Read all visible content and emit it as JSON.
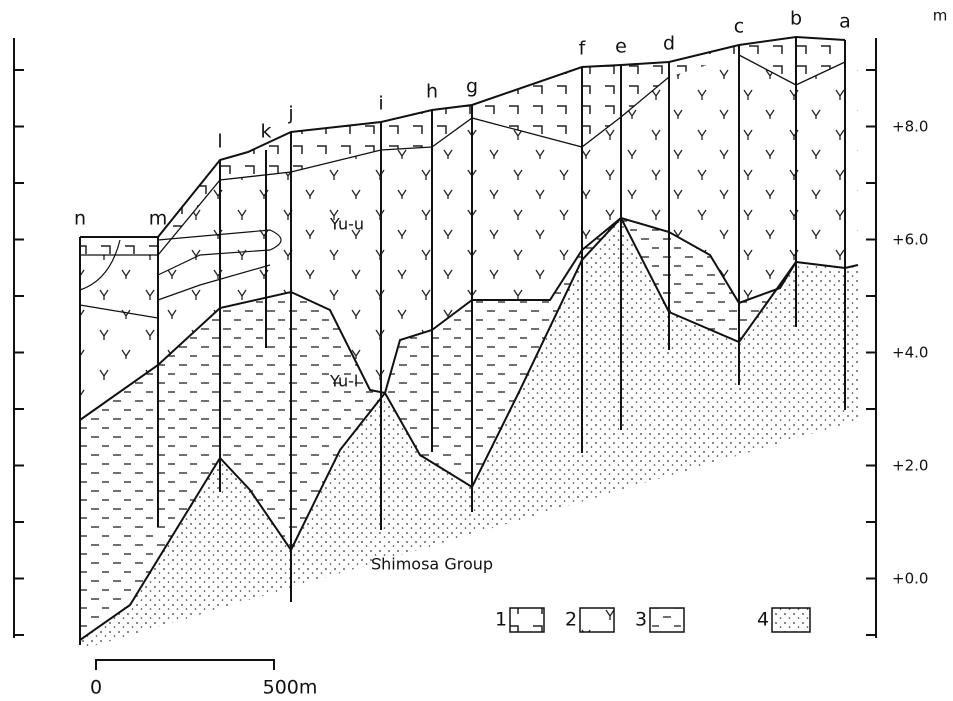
{
  "boreholes": [
    "n",
    "m",
    "l",
    "k",
    "j",
    "i",
    "h",
    "g",
    "f",
    "e",
    "d",
    "c",
    "b",
    "a"
  ],
  "axis": {
    "unit": "m",
    "labels": [
      "+8.0",
      "+6.0",
      "+4.0",
      "+2.0",
      "+0.0"
    ]
  },
  "units": {
    "upper": "Yu-u",
    "lower": "Yu-l",
    "base": "Shimosa Group"
  },
  "legend": [
    "1",
    "2",
    "3",
    "4"
  ],
  "scale": {
    "start": "0",
    "end": "500m"
  }
}
